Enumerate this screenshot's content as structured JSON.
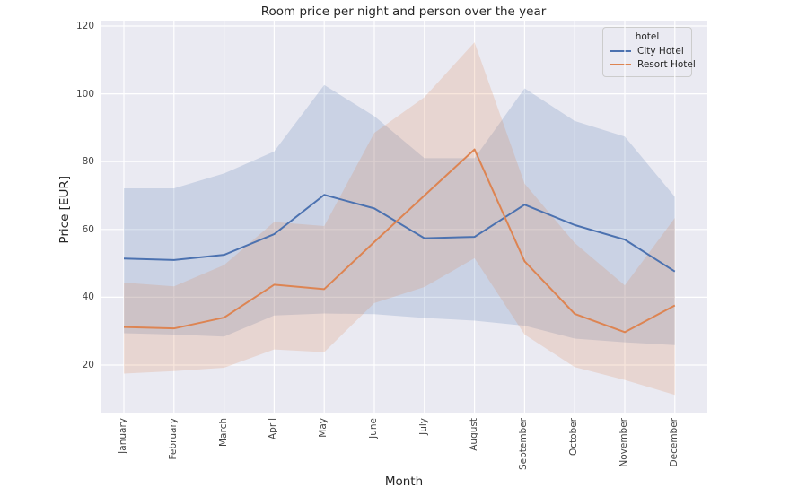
{
  "title": "Room price per night and person over the year",
  "chart_data": {
    "type": "line",
    "title": "Room price per night and person over the year",
    "xlabel": "Month",
    "ylabel": "Price [EUR]",
    "grid": true,
    "background_color": "#eaeaf2",
    "grid_color": "#ffffff",
    "band_alpha": 0.2,
    "ylim": [
      6,
      121.5
    ],
    "yticks": [
      20,
      40,
      60,
      80,
      100,
      120
    ],
    "legend": {
      "title": "hotel",
      "position": "upper right"
    },
    "categories": [
      "January",
      "February",
      "March",
      "April",
      "May",
      "June",
      "July",
      "August",
      "September",
      "October",
      "November",
      "December"
    ],
    "series": [
      {
        "name": "City Hotel",
        "color": "#4c72b0",
        "values": [
          51.4,
          51.0,
          52.5,
          58.6,
          70.2,
          66.2,
          57.4,
          57.8,
          67.3,
          61.3,
          57.0,
          47.6
        ],
        "band_high": [
          72.1,
          72.1,
          76.5,
          83.0,
          102.6,
          93.4,
          81.0,
          81.0,
          101.6,
          92.0,
          87.4,
          69.6
        ],
        "band_low": [
          29.4,
          29.0,
          28.4,
          34.6,
          35.2,
          35.0,
          33.9,
          33.1,
          31.6,
          27.8,
          26.7,
          25.9
        ]
      },
      {
        "name": "Resort Hotel",
        "color": "#dd8452",
        "values": [
          31.2,
          30.8,
          34.0,
          43.7,
          42.4,
          56.3,
          70.0,
          83.6,
          50.6,
          35.1,
          29.7,
          37.6
        ],
        "band_high": [
          44.3,
          43.2,
          49.5,
          62.2,
          61.0,
          88.5,
          99.0,
          115.2,
          73.5,
          56.0,
          43.5,
          63.4
        ],
        "band_low": [
          17.5,
          18.2,
          19.2,
          24.6,
          23.8,
          38.3,
          43.0,
          51.5,
          29.0,
          19.4,
          15.6,
          11.2
        ]
      }
    ]
  }
}
